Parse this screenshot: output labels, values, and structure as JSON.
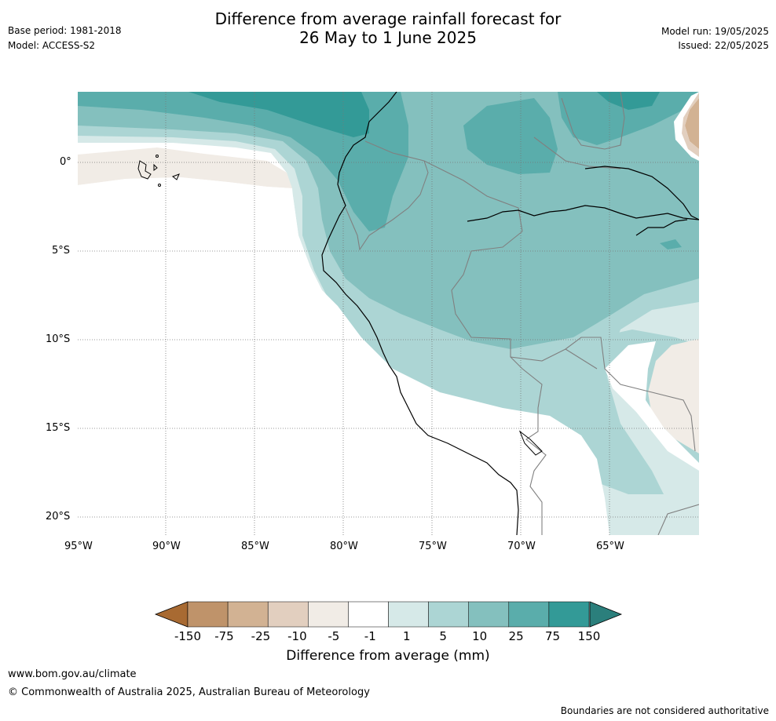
{
  "header": {
    "title_line1": "Difference from average rainfall forecast for",
    "title_line2": "26 May to 1 June 2025",
    "base_period": "Base period: 1981-2018",
    "model": "Model: ACCESS-S2",
    "model_run": "Model run: 19/05/2025",
    "issued": "Issued: 22/05/2025"
  },
  "map": {
    "lat_ticks": [
      "0°",
      "5°S",
      "10°S",
      "15°S",
      "20°S"
    ],
    "lon_ticks": [
      "95°W",
      "90°W",
      "85°W",
      "80°W",
      "75°W",
      "70°W",
      "65°W"
    ]
  },
  "colorbar": {
    "title": "Difference from average (mm)",
    "labels": [
      "-150",
      "-75",
      "-25",
      "-10",
      "-5",
      "-1",
      "1",
      "5",
      "10",
      "25",
      "75",
      "150"
    ],
    "colors": [
      "#a86a32",
      "#bf936a",
      "#d2b293",
      "#e2cfbf",
      "#f1ece6",
      "#ffffff",
      "#d6e9e8",
      "#acd5d4",
      "#84c0be",
      "#5aadab",
      "#339a97",
      "#2b7f7c"
    ]
  },
  "footer": {
    "url": "www.bom.gov.au/climate",
    "copyright": "© Commonwealth of Australia 2025, Australian Bureau of Meteorology",
    "disclaimer": "Boundaries are not considered authoritative"
  }
}
